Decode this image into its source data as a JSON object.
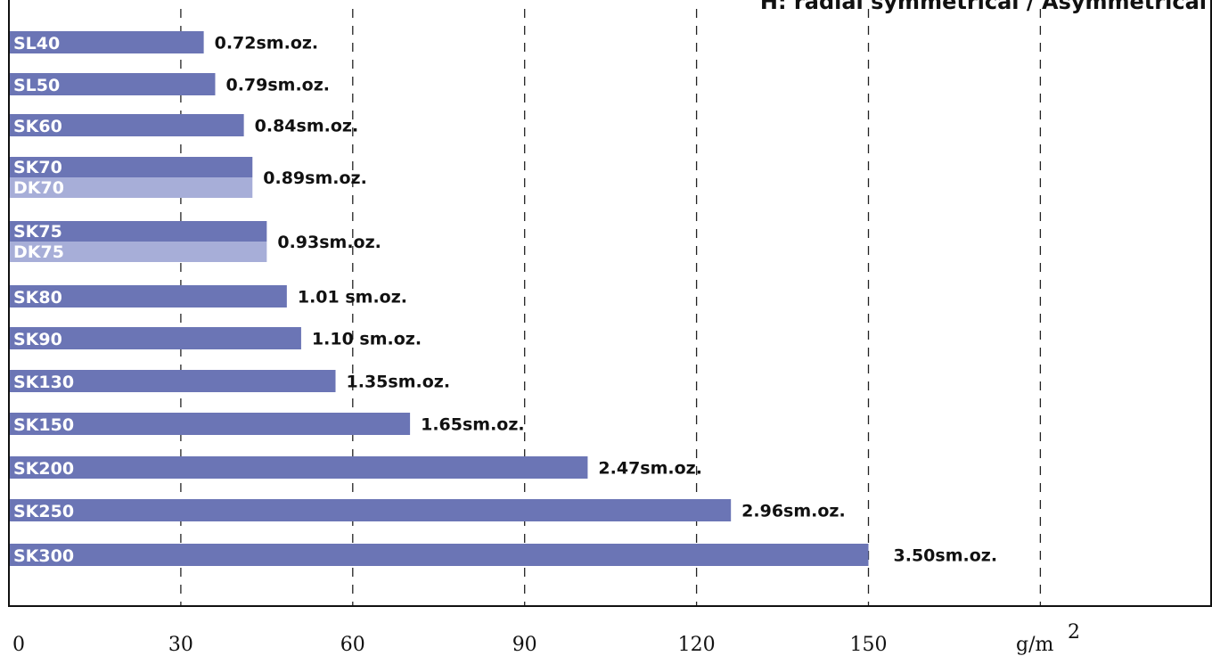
{
  "chart_data": {
    "type": "bar",
    "orientation": "horizontal",
    "title": "H: radial symmetrical / Asymmetrical",
    "x_unit": "g/m",
    "x_unit_sup": "2",
    "xlim": [
      0,
      180
    ],
    "xticks": [
      0,
      30,
      60,
      90,
      120,
      150
    ],
    "grid": true,
    "colors": {
      "primary": "#6b75b5",
      "secondary": "#a7aed8"
    },
    "groups": [
      {
        "bars": [
          {
            "label": "SL40",
            "value": 34,
            "color": "primary"
          }
        ],
        "annotation": "0.72sm.oz."
      },
      {
        "bars": [
          {
            "label": "SL50",
            "value": 36,
            "color": "primary"
          }
        ],
        "annotation": "0.79sm.oz."
      },
      {
        "bars": [
          {
            "label": "SK60",
            "value": 41,
            "color": "primary"
          }
        ],
        "annotation": "0.84sm.oz."
      },
      {
        "bars": [
          {
            "label": "SK70",
            "value": 42.5,
            "color": "primary"
          },
          {
            "label": "DK70",
            "value": 42.5,
            "color": "secondary"
          }
        ],
        "annotation": "0.89sm.oz."
      },
      {
        "bars": [
          {
            "label": "SK75",
            "value": 45,
            "color": "primary"
          },
          {
            "label": "DK75",
            "value": 45,
            "color": "secondary"
          }
        ],
        "annotation": "0.93sm.oz."
      },
      {
        "bars": [
          {
            "label": "SK80",
            "value": 48.5,
            "color": "primary"
          }
        ],
        "annotation": "1.01 sm.oz."
      },
      {
        "bars": [
          {
            "label": "SK90",
            "value": 51,
            "color": "primary"
          }
        ],
        "annotation": "1.10 sm.oz."
      },
      {
        "bars": [
          {
            "label": "SK130",
            "value": 57,
            "color": "primary"
          }
        ],
        "annotation": "1.35sm.oz."
      },
      {
        "bars": [
          {
            "label": "SK150",
            "value": 70,
            "color": "primary"
          }
        ],
        "annotation": "1.65sm.oz."
      },
      {
        "bars": [
          {
            "label": "SK200",
            "value": 101,
            "color": "primary"
          }
        ],
        "annotation": "2.47sm.oz."
      },
      {
        "bars": [
          {
            "label": "SK250",
            "value": 126,
            "color": "primary"
          }
        ],
        "annotation": "2.96sm.oz."
      },
      {
        "bars": [
          {
            "label": "SK300",
            "value": 150,
            "color": "primary"
          }
        ],
        "annotation": "3.50sm.oz."
      }
    ]
  }
}
